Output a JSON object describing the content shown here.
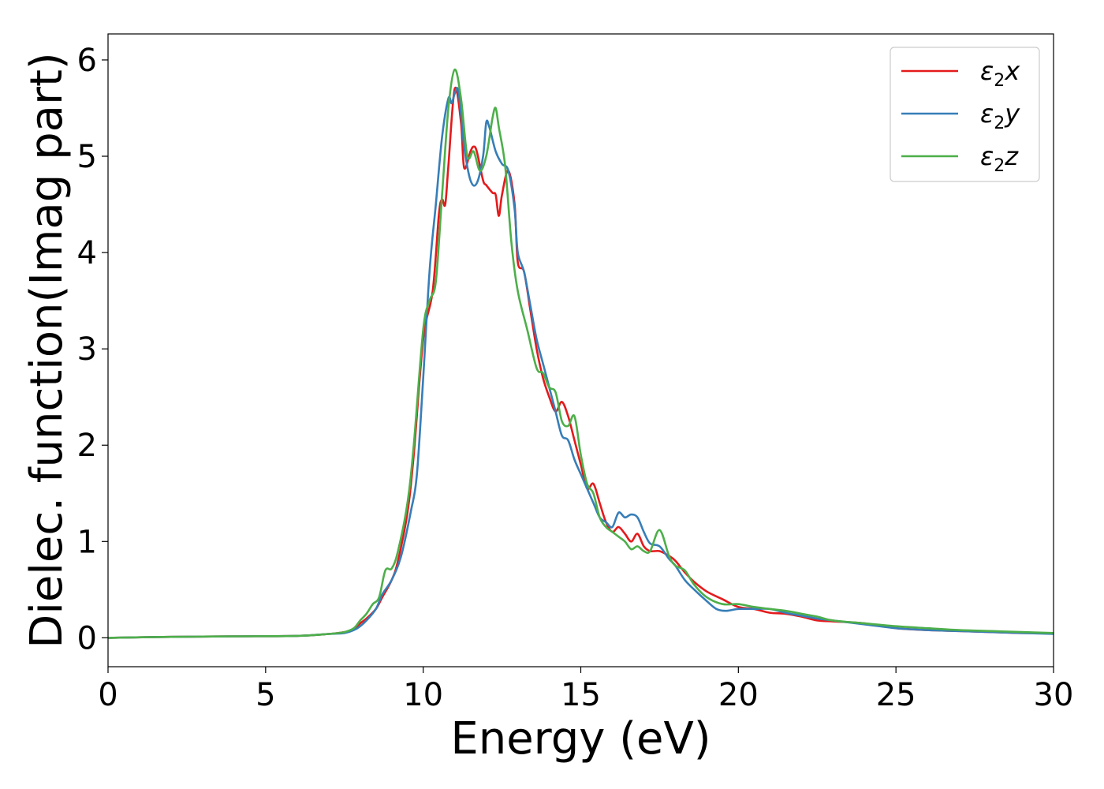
{
  "chart_data": {
    "type": "line",
    "xlabel": "Energy (eV)",
    "ylabel": "Dielec. function(Imag part)",
    "xlim": [
      0,
      30
    ],
    "ylim": [
      -0.3,
      6.27
    ],
    "xticks": [
      0,
      5,
      10,
      15,
      20,
      25,
      30
    ],
    "yticks": [
      0,
      1,
      2,
      3,
      4,
      5,
      6
    ],
    "grid": false,
    "legend_position": "top-right",
    "series": [
      {
        "name": "ε2x",
        "legend": {
          "symbol": "ε",
          "sub": "2",
          "var": "x"
        },
        "color": "#e41a1c",
        "x": [
          0,
          2,
          4,
          6,
          7,
          7.5,
          7.8,
          8.0,
          8.2,
          8.5,
          8.7,
          9.0,
          9.2,
          9.5,
          9.7,
          10.0,
          10.3,
          10.5,
          10.6,
          10.7,
          10.8,
          11.0,
          11.2,
          11.3,
          11.5,
          11.6,
          11.7,
          11.9,
          12.0,
          12.2,
          12.3,
          12.4,
          12.5,
          12.7,
          12.9,
          13.0,
          13.2,
          13.4,
          13.6,
          13.8,
          14.0,
          14.2,
          14.4,
          14.6,
          14.8,
          15.0,
          15.2,
          15.4,
          15.6,
          15.8,
          16.0,
          16.2,
          16.4,
          16.6,
          16.8,
          17.0,
          17.2,
          17.5,
          17.8,
          18.0,
          18.3,
          18.6,
          19.0,
          19.5,
          20.0,
          20.5,
          21.0,
          21.5,
          22.0,
          22.5,
          23,
          24,
          25,
          26,
          27,
          28,
          29,
          30
        ],
        "y": [
          0.0,
          0.01,
          0.015,
          0.02,
          0.04,
          0.06,
          0.09,
          0.15,
          0.2,
          0.3,
          0.42,
          0.6,
          0.8,
          1.3,
          1.9,
          3.1,
          3.6,
          4.4,
          4.55,
          4.5,
          4.9,
          5.7,
          5.35,
          4.88,
          5.05,
          5.1,
          5.05,
          4.75,
          4.7,
          4.62,
          4.6,
          4.38,
          4.6,
          4.85,
          4.5,
          3.9,
          3.8,
          3.4,
          3.0,
          2.7,
          2.5,
          2.35,
          2.45,
          2.3,
          2.05,
          1.8,
          1.55,
          1.6,
          1.4,
          1.2,
          1.1,
          1.15,
          1.08,
          1.0,
          1.08,
          0.95,
          0.9,
          0.9,
          0.85,
          0.8,
          0.68,
          0.58,
          0.48,
          0.4,
          0.32,
          0.3,
          0.26,
          0.25,
          0.22,
          0.18,
          0.17,
          0.15,
          0.1,
          0.08,
          0.07,
          0.06,
          0.05,
          0.05
        ]
      },
      {
        "name": "ε2y",
        "legend": {
          "symbol": "ε",
          "sub": "2",
          "var": "y"
        },
        "color": "#377eb8",
        "x": [
          0,
          2,
          4,
          6,
          7,
          7.5,
          7.8,
          8.0,
          8.2,
          8.5,
          8.7,
          9.0,
          9.3,
          9.6,
          9.8,
          10.0,
          10.2,
          10.4,
          10.6,
          10.8,
          10.9,
          11.0,
          11.1,
          11.2,
          11.3,
          11.5,
          11.7,
          11.9,
          12.0,
          12.1,
          12.3,
          12.5,
          12.7,
          12.9,
          13.0,
          13.2,
          13.4,
          13.6,
          13.8,
          14.0,
          14.2,
          14.4,
          14.6,
          14.8,
          15.0,
          15.2,
          15.4,
          15.6,
          15.8,
          16.0,
          16.2,
          16.4,
          16.6,
          16.8,
          17.0,
          17.2,
          17.5,
          17.8,
          18.0,
          18.3,
          18.6,
          19.0,
          19.3,
          19.6,
          20.0,
          20.5,
          21.0,
          21.5,
          22.0,
          22.5,
          23,
          24,
          25,
          26,
          27,
          28,
          29,
          30
        ],
        "y": [
          0.0,
          0.01,
          0.015,
          0.02,
          0.04,
          0.05,
          0.08,
          0.12,
          0.18,
          0.3,
          0.45,
          0.6,
          0.85,
          1.3,
          1.7,
          2.7,
          3.8,
          4.5,
          5.2,
          5.6,
          5.55,
          5.65,
          5.7,
          5.45,
          5.1,
          4.75,
          4.72,
          5.0,
          5.35,
          5.3,
          5.05,
          4.92,
          4.85,
          4.45,
          4.0,
          3.8,
          3.45,
          3.1,
          2.85,
          2.6,
          2.35,
          2.1,
          2.05,
          1.85,
          1.7,
          1.55,
          1.4,
          1.25,
          1.2,
          1.15,
          1.3,
          1.25,
          1.28,
          1.25,
          1.1,
          0.98,
          0.95,
          0.82,
          0.75,
          0.6,
          0.5,
          0.38,
          0.3,
          0.28,
          0.3,
          0.3,
          0.3,
          0.26,
          0.23,
          0.2,
          0.18,
          0.14,
          0.1,
          0.08,
          0.07,
          0.06,
          0.05,
          0.04
        ]
      },
      {
        "name": "ε2z",
        "legend": {
          "symbol": "ε",
          "sub": "2",
          "var": "z"
        },
        "color": "#4daf4a",
        "x": [
          0,
          2,
          4,
          6,
          7,
          7.5,
          7.8,
          8.0,
          8.2,
          8.4,
          8.6,
          8.8,
          9.0,
          9.2,
          9.5,
          9.7,
          10.0,
          10.2,
          10.4,
          10.6,
          10.8,
          11.0,
          11.2,
          11.4,
          11.6,
          11.8,
          12.0,
          12.2,
          12.3,
          12.4,
          12.6,
          12.8,
          13.0,
          13.3,
          13.6,
          13.8,
          14.0,
          14.2,
          14.4,
          14.6,
          14.8,
          15.0,
          15.2,
          15.4,
          15.6,
          15.8,
          16.0,
          16.2,
          16.4,
          16.6,
          16.8,
          17.0,
          17.2,
          17.5,
          17.8,
          18.0,
          18.3,
          18.6,
          19.0,
          19.5,
          20.0,
          20.5,
          21.0,
          21.5,
          22.0,
          22.5,
          23,
          24,
          25,
          26,
          27,
          28,
          29,
          30
        ],
        "y": [
          0.0,
          0.01,
          0.015,
          0.02,
          0.04,
          0.06,
          0.1,
          0.18,
          0.25,
          0.35,
          0.42,
          0.7,
          0.72,
          0.9,
          1.4,
          2.0,
          3.2,
          3.5,
          3.7,
          4.6,
          5.5,
          5.9,
          5.6,
          5.0,
          5.05,
          4.85,
          5.0,
          5.4,
          5.5,
          5.3,
          4.9,
          4.1,
          3.6,
          3.2,
          2.8,
          2.75,
          2.6,
          2.55,
          2.25,
          2.2,
          2.3,
          1.9,
          1.6,
          1.5,
          1.25,
          1.15,
          1.1,
          1.05,
          1.0,
          0.92,
          0.95,
          0.9,
          0.9,
          1.12,
          0.85,
          0.75,
          0.7,
          0.55,
          0.42,
          0.35,
          0.35,
          0.32,
          0.3,
          0.28,
          0.25,
          0.22,
          0.18,
          0.15,
          0.12,
          0.1,
          0.08,
          0.07,
          0.06,
          0.05
        ]
      }
    ]
  }
}
